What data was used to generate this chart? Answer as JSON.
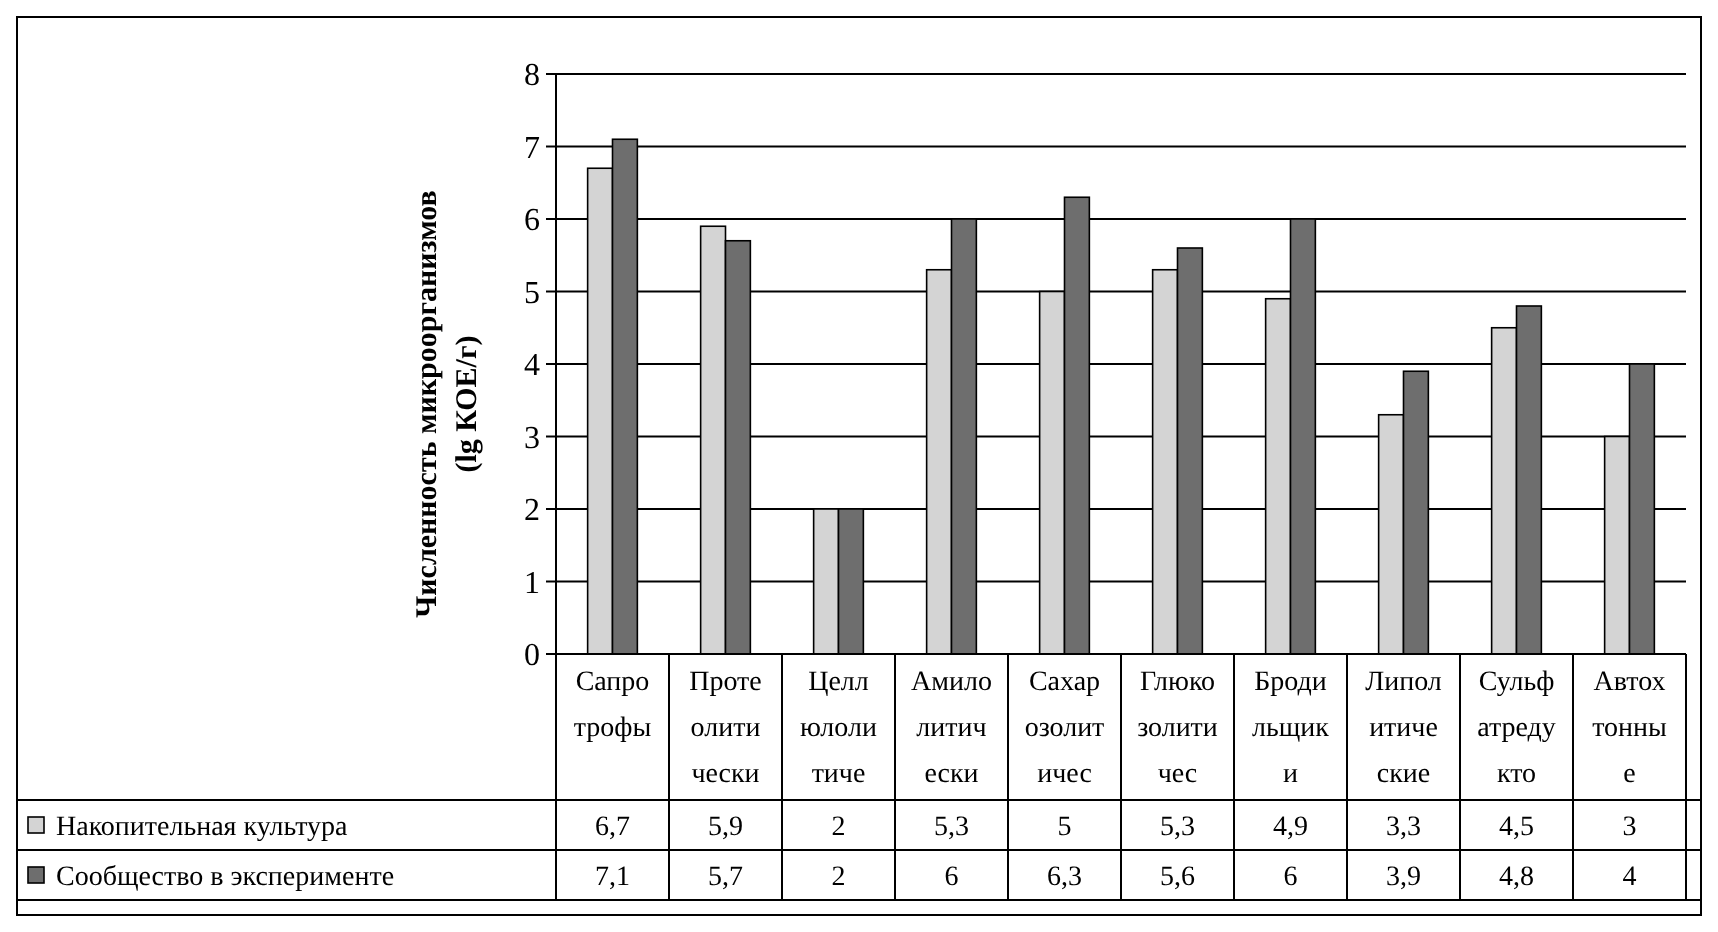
{
  "chart_data": {
    "type": "bar",
    "ylabel": "Численность микроорганизмов (lg КОЕ/г)",
    "categories": [
      "Сапротрофы",
      "Протеолитически",
      "Целлюлолитиче",
      "Амилолитически",
      "Сахарозолитичес",
      "Глюкозолитичес",
      "Бродильщики",
      "Липолитические",
      "Сульфатредукто",
      "Автохтонные"
    ],
    "series": [
      {
        "name": "Накопительная культура",
        "color": "#d4d4d4",
        "values": [
          6.7,
          5.9,
          2,
          5.3,
          5,
          5.3,
          4.9,
          3.3,
          4.5,
          3
        ],
        "value_labels": [
          "6,7",
          "5,9",
          "2",
          "5,3",
          "5",
          "5,3",
          "4,9",
          "3,3",
          "4,5",
          "3"
        ]
      },
      {
        "name": "Сообщество в эксперименте",
        "color": "#6e6e6e",
        "values": [
          7.1,
          5.7,
          2,
          6,
          6.3,
          5.6,
          6,
          3.9,
          4.8,
          4
        ],
        "value_labels": [
          "7,1",
          "5,7",
          "2",
          "6",
          "6,3",
          "5,6",
          "6",
          "3,9",
          "4,8",
          "4"
        ]
      }
    ],
    "ylim": [
      0,
      8
    ],
    "yticks": [
      0,
      1,
      2,
      3,
      4,
      5,
      6,
      7,
      8
    ],
    "grid": "y",
    "legend": "bottom left"
  }
}
